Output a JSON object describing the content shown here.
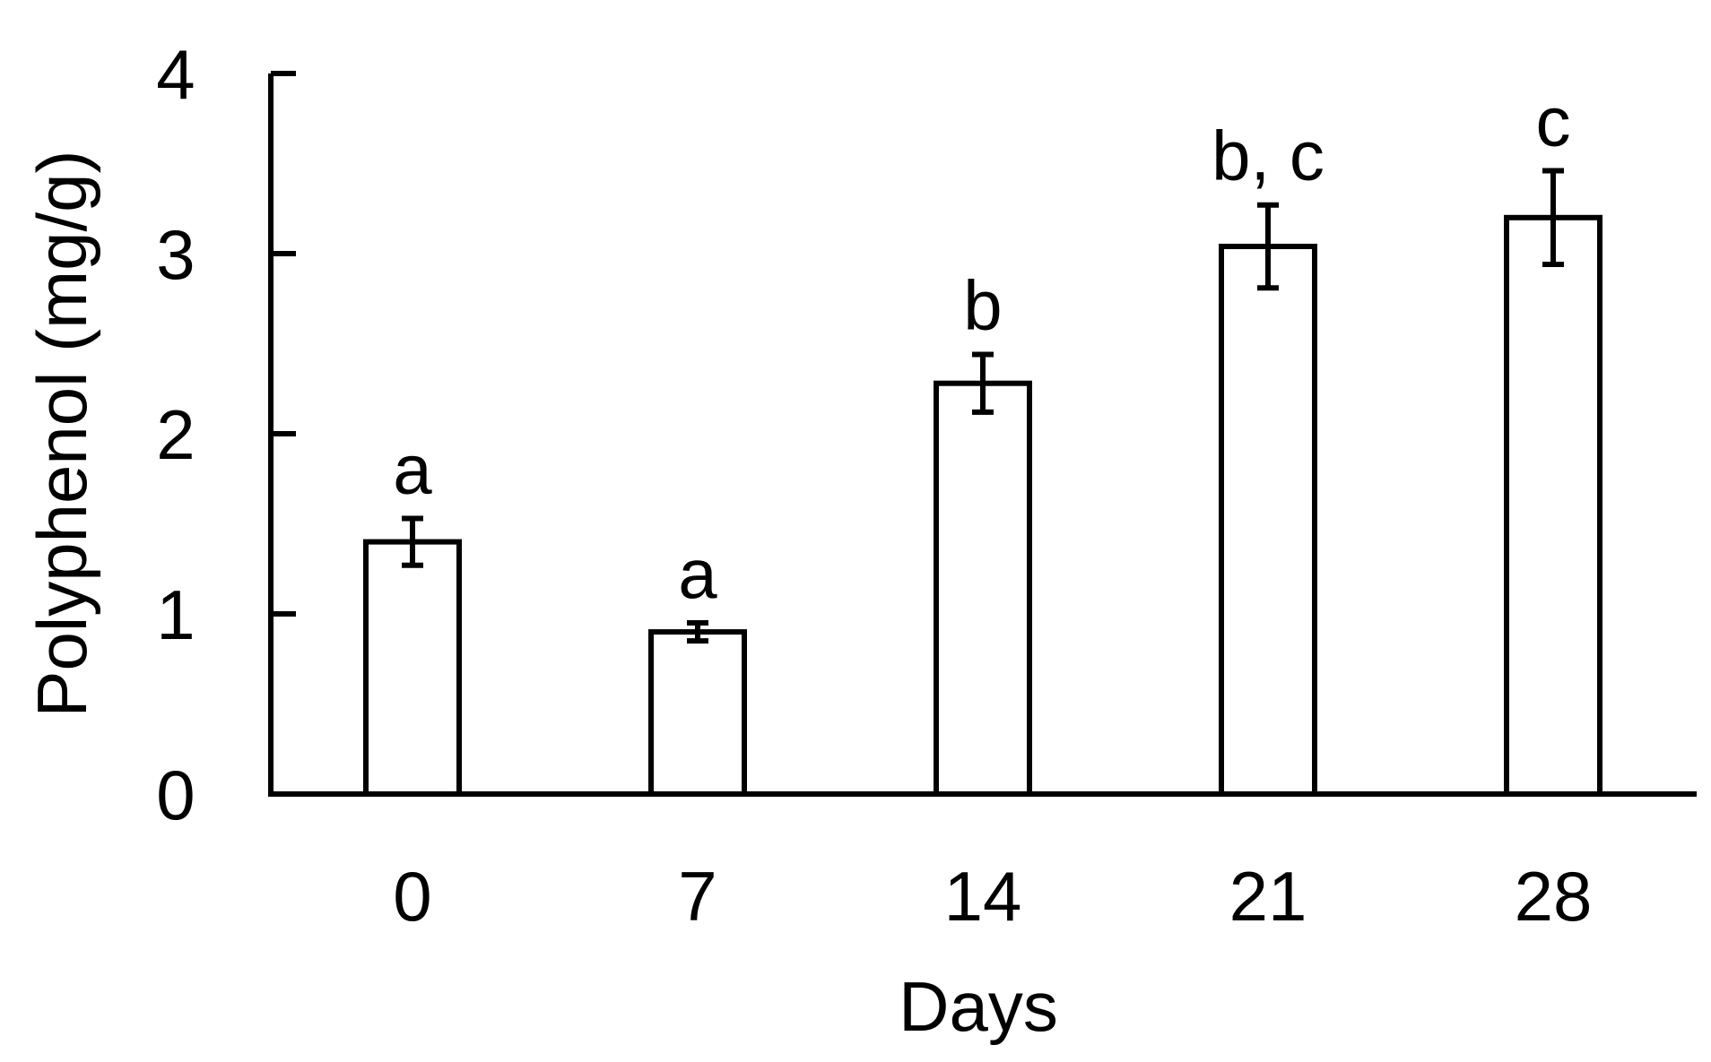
{
  "chart_data": {
    "type": "bar",
    "title": "",
    "xlabel": "Days",
    "ylabel": "Polyphenol (mg/g)",
    "categories": [
      "0",
      "7",
      "14",
      "21",
      "28"
    ],
    "values": [
      1.4,
      0.9,
      2.28,
      3.04,
      3.2
    ],
    "errors": [
      0.13,
      0.05,
      0.16,
      0.23,
      0.26
    ],
    "significance_labels": [
      "a",
      "a",
      "b",
      "b, c",
      "c"
    ],
    "yticks": [
      "0",
      "1",
      "2",
      "3",
      "4"
    ],
    "ylim": [
      0,
      4
    ],
    "grid": false,
    "legend": "none"
  }
}
